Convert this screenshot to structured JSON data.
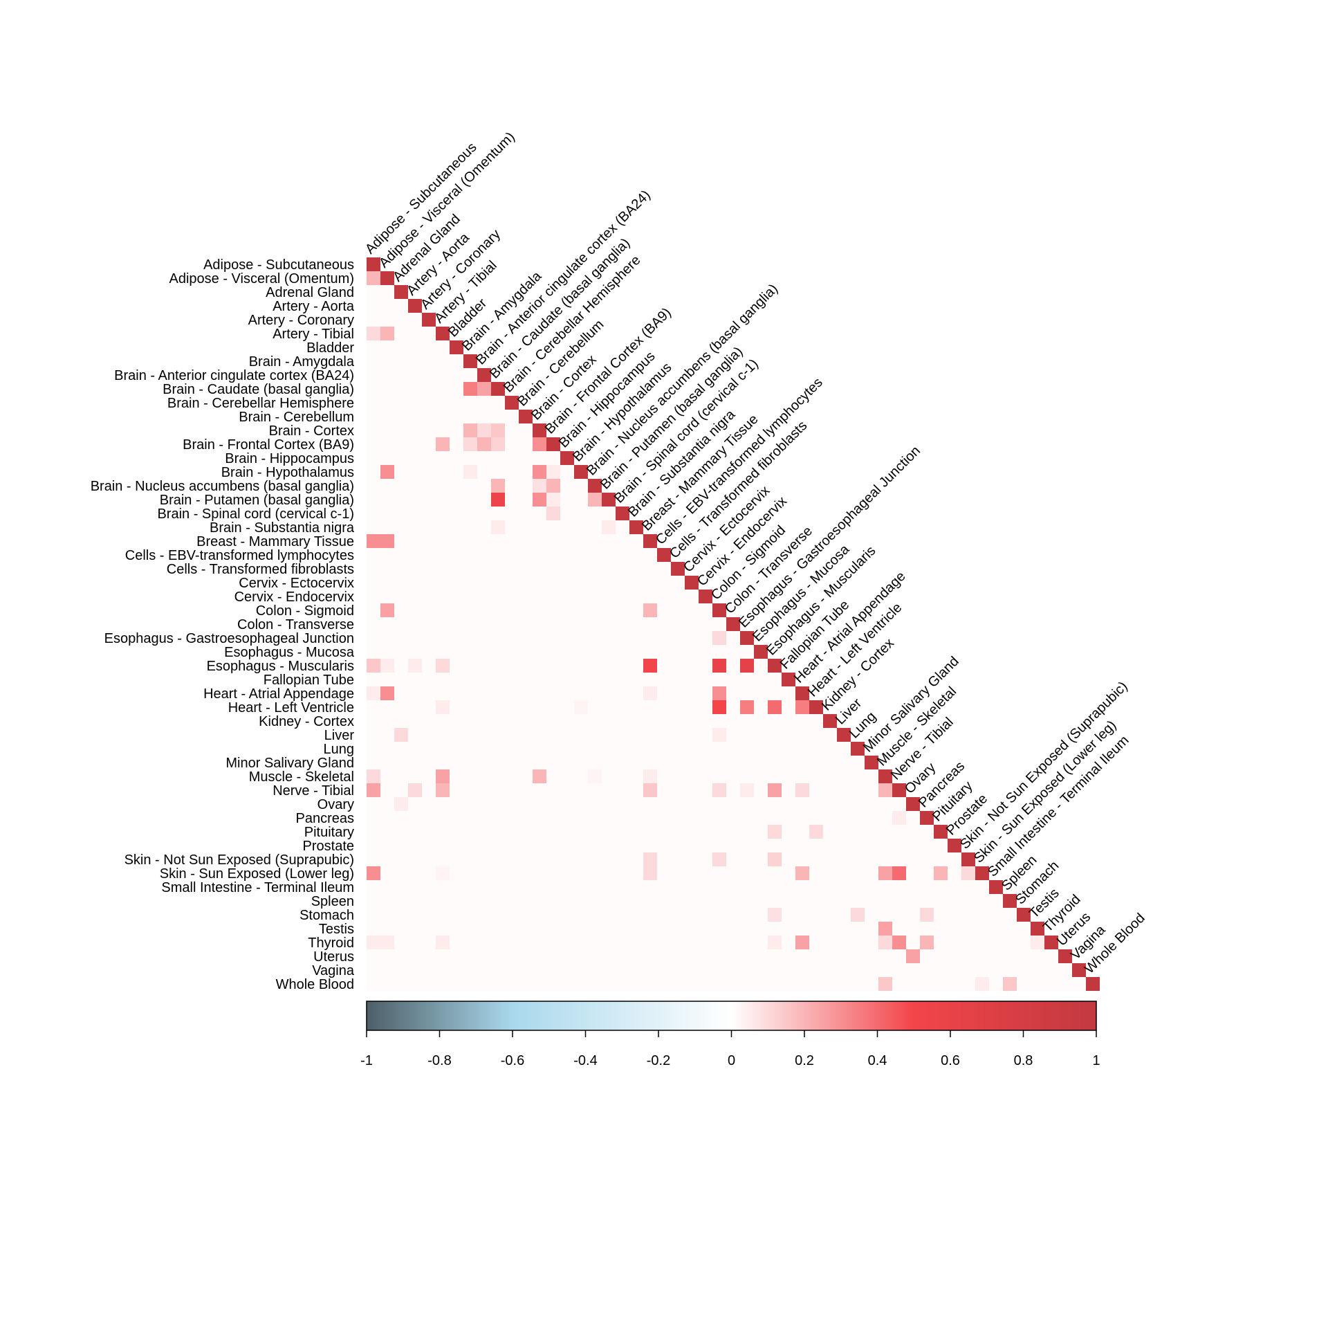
{
  "chart_data": {
    "type": "heatmap",
    "shape": "lower-triangular",
    "labels": [
      "Adipose - Subcutaneous",
      "Adipose - Visceral (Omentum)",
      "Adrenal Gland",
      "Artery - Aorta",
      "Artery - Coronary",
      "Artery - Tibial",
      "Bladder",
      "Brain - Amygdala",
      "Brain - Anterior cingulate cortex (BA24)",
      "Brain - Caudate (basal ganglia)",
      "Brain - Cerebellar Hemisphere",
      "Brain - Cerebellum",
      "Brain - Cortex",
      "Brain - Frontal Cortex (BA9)",
      "Brain - Hippocampus",
      "Brain - Hypothalamus",
      "Brain - Nucleus accumbens (basal ganglia)",
      "Brain - Putamen (basal ganglia)",
      "Brain - Spinal cord (cervical c-1)",
      "Brain - Substantia nigra",
      "Breast - Mammary Tissue",
      "Cells - EBV-transformed lymphocytes",
      "Cells - Transformed fibroblasts",
      "Cervix - Ectocervix",
      "Cervix - Endocervix",
      "Colon - Sigmoid",
      "Colon - Transverse",
      "Esophagus - Gastroesophageal Junction",
      "Esophagus - Mucosa",
      "Esophagus - Muscularis",
      "Fallopian Tube",
      "Heart - Atrial Appendage",
      "Heart - Left Ventricle",
      "Kidney - Cortex",
      "Liver",
      "Lung",
      "Minor Salivary Gland",
      "Muscle - Skeletal",
      "Nerve - Tibial",
      "Ovary",
      "Pancreas",
      "Pituitary",
      "Prostate",
      "Skin - Not Sun Exposed (Suprapubic)",
      "Skin - Sun Exposed (Lower leg)",
      "Small Intestine - Terminal Ileum",
      "Spleen",
      "Stomach",
      "Testis",
      "Thyroid",
      "Uterus",
      "Vagina",
      "Whole Blood"
    ],
    "diagonal_value": 1,
    "background_value": 0.01,
    "cells": [
      {
        "row": 1,
        "col": 0,
        "value": 0.2
      },
      {
        "row": 5,
        "col": 0,
        "value": 0.1
      },
      {
        "row": 5,
        "col": 1,
        "value": 0.2
      },
      {
        "row": 9,
        "col": 7,
        "value": 0.35
      },
      {
        "row": 9,
        "col": 8,
        "value": 0.25
      },
      {
        "row": 12,
        "col": 7,
        "value": 0.2
      },
      {
        "row": 12,
        "col": 8,
        "value": 0.1
      },
      {
        "row": 12,
        "col": 9,
        "value": 0.15
      },
      {
        "row": 13,
        "col": 5,
        "value": 0.2
      },
      {
        "row": 13,
        "col": 7,
        "value": 0.1
      },
      {
        "row": 13,
        "col": 8,
        "value": 0.2
      },
      {
        "row": 13,
        "col": 9,
        "value": 0.12
      },
      {
        "row": 13,
        "col": 12,
        "value": 0.3
      },
      {
        "row": 15,
        "col": 1,
        "value": 0.3
      },
      {
        "row": 15,
        "col": 7,
        "value": 0.05
      },
      {
        "row": 15,
        "col": 12,
        "value": 0.3
      },
      {
        "row": 15,
        "col": 13,
        "value": 0.05
      },
      {
        "row": 16,
        "col": 9,
        "value": 0.2
      },
      {
        "row": 16,
        "col": 12,
        "value": 0.08
      },
      {
        "row": 16,
        "col": 13,
        "value": 0.2
      },
      {
        "row": 17,
        "col": 9,
        "value": 0.55
      },
      {
        "row": 17,
        "col": 12,
        "value": 0.3
      },
      {
        "row": 17,
        "col": 13,
        "value": 0.05
      },
      {
        "row": 17,
        "col": 16,
        "value": 0.2
      },
      {
        "row": 18,
        "col": 13,
        "value": 0.1
      },
      {
        "row": 19,
        "col": 9,
        "value": 0.05
      },
      {
        "row": 19,
        "col": 17,
        "value": 0.05
      },
      {
        "row": 20,
        "col": 0,
        "value": 0.3
      },
      {
        "row": 20,
        "col": 1,
        "value": 0.3
      },
      {
        "row": 25,
        "col": 1,
        "value": 0.25
      },
      {
        "row": 25,
        "col": 20,
        "value": 0.2
      },
      {
        "row": 27,
        "col": 25,
        "value": 0.1
      },
      {
        "row": 29,
        "col": 0,
        "value": 0.15
      },
      {
        "row": 29,
        "col": 1,
        "value": 0.05
      },
      {
        "row": 29,
        "col": 3,
        "value": 0.05
      },
      {
        "row": 29,
        "col": 5,
        "value": 0.1
      },
      {
        "row": 29,
        "col": 20,
        "value": 0.5
      },
      {
        "row": 29,
        "col": 25,
        "value": 0.6
      },
      {
        "row": 29,
        "col": 27,
        "value": 0.65
      },
      {
        "row": 31,
        "col": 0,
        "value": 0.05
      },
      {
        "row": 31,
        "col": 1,
        "value": 0.3
      },
      {
        "row": 31,
        "col": 20,
        "value": 0.05
      },
      {
        "row": 31,
        "col": 25,
        "value": 0.3
      },
      {
        "row": 32,
        "col": 5,
        "value": 0.05
      },
      {
        "row": 32,
        "col": 15,
        "value": 0.03
      },
      {
        "row": 32,
        "col": 25,
        "value": 0.5
      },
      {
        "row": 32,
        "col": 27,
        "value": 0.35
      },
      {
        "row": 32,
        "col": 29,
        "value": 0.4
      },
      {
        "row": 32,
        "col": 31,
        "value": 0.35
      },
      {
        "row": 34,
        "col": 2,
        "value": 0.1
      },
      {
        "row": 34,
        "col": 25,
        "value": 0.05
      },
      {
        "row": 37,
        "col": 0,
        "value": 0.1
      },
      {
        "row": 37,
        "col": 5,
        "value": 0.25
      },
      {
        "row": 37,
        "col": 12,
        "value": 0.2
      },
      {
        "row": 37,
        "col": 16,
        "value": 0.03
      },
      {
        "row": 37,
        "col": 20,
        "value": 0.05
      },
      {
        "row": 38,
        "col": 0,
        "value": 0.25
      },
      {
        "row": 38,
        "col": 3,
        "value": 0.1
      },
      {
        "row": 38,
        "col": 5,
        "value": 0.2
      },
      {
        "row": 38,
        "col": 20,
        "value": 0.15
      },
      {
        "row": 38,
        "col": 25,
        "value": 0.1
      },
      {
        "row": 38,
        "col": 27,
        "value": 0.05
      },
      {
        "row": 38,
        "col": 29,
        "value": 0.25
      },
      {
        "row": 38,
        "col": 31,
        "value": 0.1
      },
      {
        "row": 38,
        "col": 37,
        "value": 0.2
      },
      {
        "row": 39,
        "col": 2,
        "value": 0.05
      },
      {
        "row": 40,
        "col": 38,
        "value": 0.05
      },
      {
        "row": 41,
        "col": 29,
        "value": 0.1
      },
      {
        "row": 41,
        "col": 32,
        "value": 0.1
      },
      {
        "row": 43,
        "col": 20,
        "value": 0.1
      },
      {
        "row": 43,
        "col": 25,
        "value": 0.1
      },
      {
        "row": 43,
        "col": 29,
        "value": 0.12
      },
      {
        "row": 44,
        "col": 0,
        "value": 0.3
      },
      {
        "row": 44,
        "col": 5,
        "value": 0.03
      },
      {
        "row": 44,
        "col": 20,
        "value": 0.1
      },
      {
        "row": 44,
        "col": 31,
        "value": 0.2
      },
      {
        "row": 44,
        "col": 37,
        "value": 0.25
      },
      {
        "row": 44,
        "col": 38,
        "value": 0.4
      },
      {
        "row": 44,
        "col": 41,
        "value": 0.2
      },
      {
        "row": 44,
        "col": 43,
        "value": 0.1
      },
      {
        "row": 47,
        "col": 29,
        "value": 0.08
      },
      {
        "row": 47,
        "col": 35,
        "value": 0.1
      },
      {
        "row": 47,
        "col": 40,
        "value": 0.1
      },
      {
        "row": 48,
        "col": 37,
        "value": 0.25
      },
      {
        "row": 49,
        "col": 0,
        "value": 0.05
      },
      {
        "row": 49,
        "col": 1,
        "value": 0.05
      },
      {
        "row": 49,
        "col": 5,
        "value": 0.05
      },
      {
        "row": 49,
        "col": 29,
        "value": 0.05
      },
      {
        "row": 49,
        "col": 31,
        "value": 0.25
      },
      {
        "row": 49,
        "col": 37,
        "value": 0.1
      },
      {
        "row": 49,
        "col": 38,
        "value": 0.3
      },
      {
        "row": 49,
        "col": 40,
        "value": 0.2
      },
      {
        "row": 49,
        "col": 48,
        "value": 0.05
      },
      {
        "row": 50,
        "col": 39,
        "value": 0.25
      },
      {
        "row": 52,
        "col": 37,
        "value": 0.15
      },
      {
        "row": 52,
        "col": 44,
        "value": 0.05
      },
      {
        "row": 52,
        "col": 46,
        "value": 0.15
      }
    ],
    "colorbar": {
      "range": [
        -1,
        1
      ],
      "ticks": [
        "-1",
        "-0.8",
        "-0.6",
        "-0.4",
        "-0.2",
        "0",
        "0.2",
        "0.4",
        "0.6",
        "0.8",
        "1"
      ],
      "stops": [
        {
          "value": -1,
          "color": "#4d5f68"
        },
        {
          "value": -0.6,
          "color": "#a9d8ec"
        },
        {
          "value": 0,
          "color": "#ffffff"
        },
        {
          "value": 0.5,
          "color": "#f2454a"
        },
        {
          "value": 1,
          "color": "#c1393f"
        }
      ]
    },
    "title": "",
    "xlabel": "",
    "ylabel": ""
  }
}
